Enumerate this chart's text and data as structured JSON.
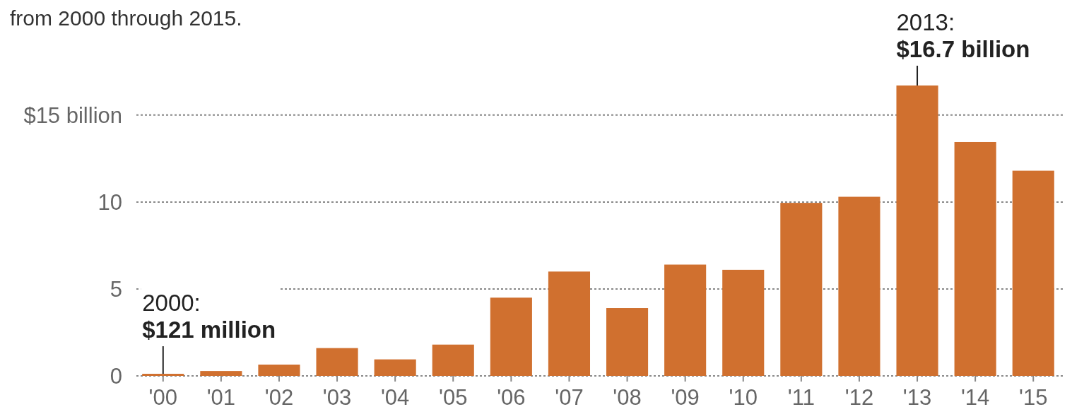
{
  "chart_data": {
    "type": "bar",
    "subtitle": "from 2000 through 2015.",
    "categories": [
      "'00",
      "'01",
      "'02",
      "'03",
      "'04",
      "'05",
      "'06",
      "'07",
      "'08",
      "'09",
      "'10",
      "'11",
      "'12",
      "'13",
      "'14",
      "'15"
    ],
    "values": [
      0.121,
      0.28,
      0.65,
      1.6,
      0.95,
      1.8,
      4.5,
      6.0,
      3.9,
      6.4,
      6.1,
      9.95,
      10.3,
      16.7,
      13.45,
      11.8
    ],
    "color": "#d0702f",
    "ylim": [
      0,
      16.7
    ],
    "yticks": [
      {
        "value": 0,
        "label": "0"
      },
      {
        "value": 5,
        "label": "5"
      },
      {
        "value": 10,
        "label": "10"
      },
      {
        "value": 15,
        "label": "$15 billion"
      }
    ],
    "grid": "y",
    "annotations": [
      {
        "text": "2000:\n$121 million",
        "x": "'00",
        "y": 0.121
      },
      {
        "text": "2013:\n$16.7 billion",
        "x": "'13",
        "y": 16.7
      }
    ]
  }
}
